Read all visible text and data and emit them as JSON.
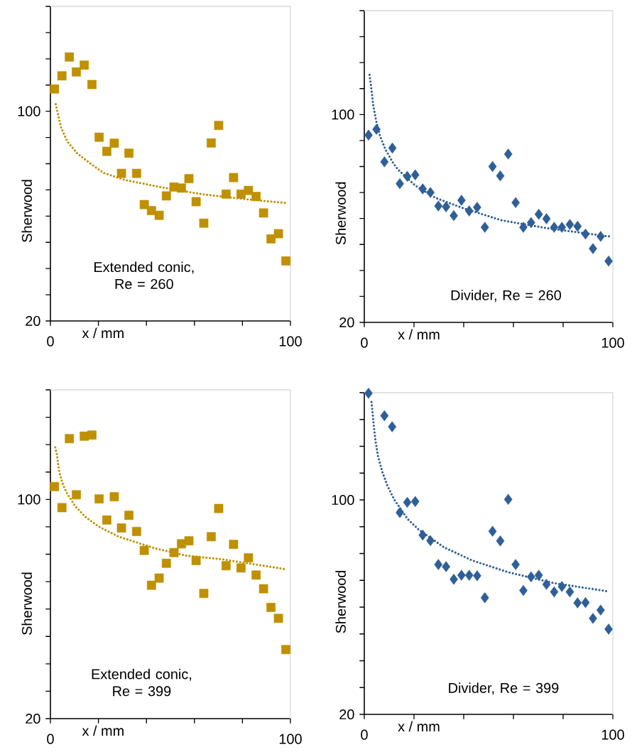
{
  "chart_data": [
    {
      "type": "scatter",
      "xlabel": "x / mm",
      "ylabel": "Sherwood",
      "annotations": [
        "Extended conic, Re = 260"
      ],
      "xlim": [
        0,
        100
      ],
      "ylim": [
        20,
        140
      ],
      "xticks": [
        0,
        {
          "value": 20,
          "label": null
        },
        {
          "value": 40,
          "label": null
        },
        {
          "value": 60,
          "label": null
        },
        {
          "value": 80,
          "label": null
        },
        100
      ],
      "yticks": [
        20,
        {
          "value": 30,
          "label": null
        },
        {
          "value": 40,
          "label": null
        },
        {
          "value": 50,
          "label": null
        },
        {
          "value": 60,
          "label": null
        },
        {
          "value": 70,
          "label": null
        },
        {
          "value": 80,
          "label": null
        },
        {
          "value": 90,
          "label": null
        },
        100,
        {
          "value": 110,
          "label": null
        },
        {
          "value": 120,
          "label": null
        },
        {
          "value": 130,
          "label": null
        },
        {
          "value": 140,
          "label": null
        }
      ],
      "series": [
        {
          "type": "scatter",
          "marker": "square",
          "color": "#bf9000",
          "x": [
            1.7,
            4.8,
            7.9,
            10.8,
            14.1,
            17.3,
            20.3,
            23.5,
            26.6,
            29.6,
            32.7,
            35.9,
            39.1,
            42.1,
            45.3,
            48.3,
            51.5,
            54.6,
            57.7,
            60.7,
            63.9,
            67.0,
            70.1,
            73.2,
            76.3,
            79.4,
            82.5,
            85.7,
            88.8,
            91.9,
            95.0,
            98.1
          ],
          "values": [
            108.5,
            113.5,
            120.7,
            115.0,
            117.6,
            110.2,
            90.1,
            84.7,
            87.8,
            76.3,
            84.0,
            76.3,
            64.4,
            62.1,
            60.3,
            67.7,
            71.1,
            70.7,
            74.3,
            65.5,
            57.3,
            87.9,
            94.6,
            68.4,
            74.7,
            68.4,
            69.8,
            67.5,
            61.2,
            51.3,
            53.3,
            42.9
          ]
        },
        {
          "type": "line",
          "marker": "none",
          "line_style": "dotted",
          "color": "#bf9000",
          "x": [
            2.2,
            4.4,
            7.1,
            11.2,
            16.3,
            22.1,
            31,
            46.8,
            62.7,
            82,
            98.3
          ],
          "values": [
            102.7,
            93.9,
            88.4,
            83.9,
            80.3,
            76.5,
            73.8,
            70.9,
            68.4,
            66.4,
            65.0
          ]
        }
      ]
    },
    {
      "type": "scatter",
      "xlabel": "x / mm",
      "ylabel": "Sherwood",
      "annotations": [
        "Divider, Re = 260"
      ],
      "xlim": [
        0,
        100
      ],
      "ylim": [
        20,
        140
      ],
      "xticks": [
        0,
        {
          "value": 20,
          "label": null
        },
        {
          "value": 40,
          "label": null
        },
        {
          "value": 60,
          "label": null
        },
        {
          "value": 80,
          "label": null
        },
        100
      ],
      "yticks": [
        20,
        {
          "value": 30,
          "label": null
        },
        {
          "value": 40,
          "label": null
        },
        {
          "value": 50,
          "label": null
        },
        {
          "value": 60,
          "label": null
        },
        {
          "value": 70,
          "label": null
        },
        {
          "value": 80,
          "label": null
        },
        {
          "value": 90,
          "label": null
        },
        100,
        {
          "value": 110,
          "label": null
        },
        {
          "value": 120,
          "label": null
        },
        {
          "value": 130,
          "label": null
        },
        {
          "value": 140,
          "label": null
        }
      ],
      "series": [
        {
          "type": "scatter",
          "marker": "diamond",
          "color": "#2f5f98",
          "x": [
            1.7,
            4.9,
            8.1,
            11.3,
            14.3,
            17.3,
            20.5,
            23.5,
            26.6,
            29.8,
            32.9,
            36.0,
            39.1,
            42.2,
            45.4,
            48.5,
            51.6,
            54.7,
            57.9,
            60.9,
            64.0,
            67.1,
            70.2,
            73.3,
            76.4,
            79.5,
            82.7,
            85.8,
            89.0,
            92.0,
            95.1,
            98.3
          ],
          "values": [
            92.1,
            94.3,
            81.8,
            87.1,
            73.4,
            76.2,
            76.8,
            71.4,
            70.0,
            64.8,
            64.5,
            61.1,
            67.0,
            62.9,
            64.3,
            56.6,
            80.0,
            76.4,
            84.8,
            66.1,
            56.6,
            58.4,
            61.6,
            59.9,
            56.6,
            56.6,
            57.7,
            57.0,
            54.0,
            48.4,
            53.1,
            43.6
          ]
        },
        {
          "type": "line",
          "marker": "none",
          "line_style": "dotted",
          "color": "#2f5f98",
          "x": [
            2.1,
            2.9,
            3.6,
            4.8,
            6.3,
            8.6,
            11.7,
            13.6,
            20.5,
            28.5,
            40,
            55.2,
            73.3,
            98.5
          ],
          "values": [
            115.3,
            109.6,
            103.5,
            97.5,
            91.8,
            86.4,
            81.2,
            78.8,
            72.7,
            68.0,
            63.9,
            59.3,
            56.3,
            53.1
          ]
        }
      ]
    },
    {
      "type": "scatter",
      "xlabel": "x / mm",
      "ylabel": "Sherwood",
      "annotations": [
        "Extended conic, Re = 399"
      ],
      "xlim": [
        0,
        100
      ],
      "ylim": [
        20,
        140
      ],
      "xticks": [
        0,
        {
          "value": 20,
          "label": null
        },
        {
          "value": 40,
          "label": null
        },
        {
          "value": 60,
          "label": null
        },
        {
          "value": 80,
          "label": null
        },
        100
      ],
      "yticks": [
        20,
        {
          "value": 30,
          "label": null
        },
        {
          "value": 40,
          "label": null
        },
        {
          "value": 50,
          "label": null
        },
        {
          "value": 60,
          "label": null
        },
        {
          "value": 70,
          "label": null
        },
        {
          "value": 80,
          "label": null
        },
        {
          "value": 90,
          "label": null
        },
        100,
        {
          "value": 110,
          "label": null
        },
        {
          "value": 120,
          "label": null
        },
        {
          "value": 130,
          "label": null
        },
        {
          "value": 140,
          "label": null
        }
      ],
      "series": [
        {
          "type": "scatter",
          "marker": "square",
          "color": "#bf9000",
          "x": [
            1.7,
            4.8,
            7.9,
            10.8,
            14.1,
            17.3,
            20.3,
            23.5,
            26.6,
            29.6,
            32.7,
            35.9,
            39.1,
            42.1,
            45.3,
            48.3,
            51.5,
            54.6,
            57.7,
            60.7,
            63.9,
            67.0,
            70.1,
            73.2,
            76.3,
            79.4,
            82.5,
            85.7,
            88.8,
            91.9,
            95.0,
            98.1
          ],
          "values": [
            104.7,
            97.0,
            122.2,
            101.7,
            123.1,
            123.5,
            100.2,
            92.5,
            101.0,
            89.6,
            94.2,
            88.3,
            81.4,
            68.7,
            71.3,
            76.7,
            80.6,
            83.8,
            84.9,
            77.7,
            65.7,
            86.4,
            96.7,
            75.8,
            83.6,
            75.0,
            78.7,
            72.4,
            67.4,
            60.6,
            56.6,
            45.2
          ]
        },
        {
          "type": "line",
          "marker": "none",
          "line_style": "dotted",
          "color": "#bf9000",
          "x": [
            2.0,
            2.7,
            3.6,
            4.4,
            5.4,
            6.8,
            10.2,
            14.5,
            19.9,
            28.5,
            43.8,
            56.6,
            72,
            98.3
          ],
          "values": [
            119.0,
            116.4,
            110.5,
            107.7,
            105.0,
            102.4,
            97.7,
            93.7,
            90.2,
            86.4,
            82.1,
            79.5,
            78.1,
            74.5
          ]
        }
      ]
    },
    {
      "type": "scatter",
      "xlabel": "x / mm",
      "ylabel": "Sherwood",
      "annotations": [
        "Divider, Re = 399"
      ],
      "xlim": [
        0,
        100
      ],
      "ylim": [
        20,
        140
      ],
      "xticks": [
        0,
        {
          "value": 20,
          "label": null
        },
        {
          "value": 40,
          "label": null
        },
        {
          "value": 60,
          "label": null
        },
        {
          "value": 80,
          "label": null
        },
        100
      ],
      "yticks": [
        20,
        {
          "value": 30,
          "label": null
        },
        {
          "value": 40,
          "label": null
        },
        {
          "value": 50,
          "label": null
        },
        {
          "value": 60,
          "label": null
        },
        {
          "value": 70,
          "label": null
        },
        {
          "value": 80,
          "label": null
        },
        {
          "value": 90,
          "label": null
        },
        100,
        {
          "value": 110,
          "label": null
        },
        {
          "value": 120,
          "label": null
        },
        {
          "value": 130,
          "label": null
        },
        {
          "value": 140,
          "label": null
        }
      ],
      "series": [
        {
          "type": "scatter",
          "marker": "diamond",
          "color": "#2f5f98",
          "x": [
            1.7,
            8.1,
            11.2,
            14.3,
            17.3,
            20.5,
            23.5,
            26.6,
            29.8,
            32.9,
            36.0,
            39.1,
            42.2,
            45.4,
            48.5,
            51.6,
            54.7,
            57.9,
            60.9,
            64.0,
            67.1,
            70.2,
            73.3,
            76.4,
            79.5,
            82.7,
            85.8,
            89.0,
            92.0,
            95.1,
            98.3
          ],
          "values": [
            139.8,
            131.4,
            127.3,
            95.3,
            99.1,
            99.4,
            86.9,
            84.8,
            75.9,
            75.1,
            70.4,
            71.9,
            71.9,
            71.7,
            63.5,
            88.3,
            84.7,
            100.2,
            75.9,
            66.2,
            71.3,
            71.9,
            68.5,
            65.7,
            67.7,
            65.7,
            61.6,
            61.7,
            55.8,
            58.9,
            51.8
          ]
        },
        {
          "type": "line",
          "marker": "none",
          "line_style": "dotted",
          "color": "#2f5f98",
          "x": [
            2.9,
            3.8,
            4.5,
            5.5,
            7.2,
            9.3,
            12.0,
            17.4,
            21.9,
            32.1,
            43.5,
            58.0,
            76.1,
            98
          ],
          "values": [
            136.5,
            127.9,
            122.1,
            116.4,
            110.6,
            105.3,
            100.2,
            92.9,
            88.9,
            82.3,
            77.4,
            73.0,
            69.0,
            65.9
          ]
        }
      ]
    }
  ]
}
